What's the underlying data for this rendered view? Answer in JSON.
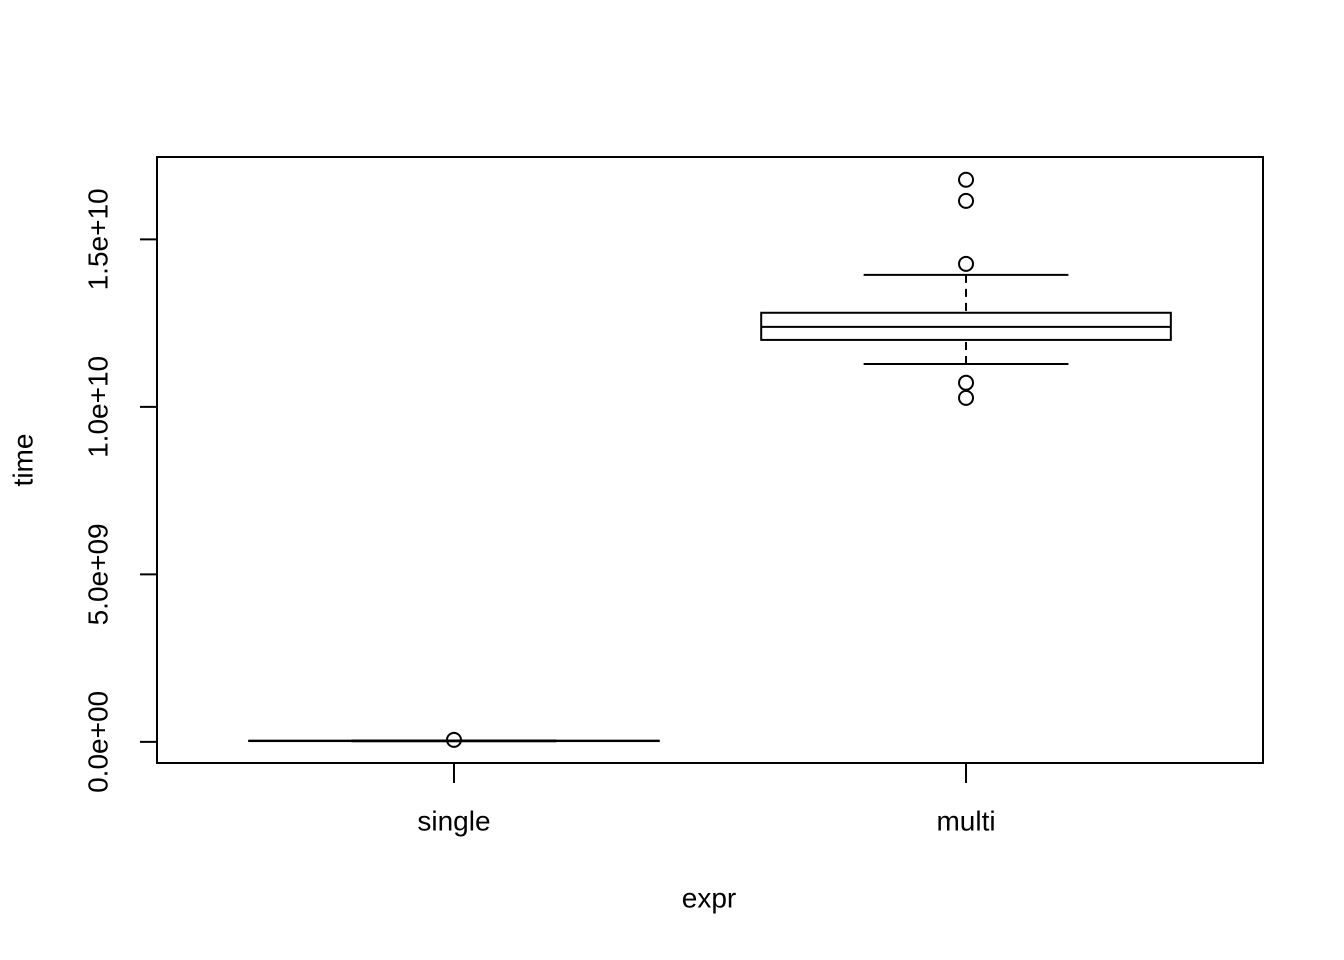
{
  "chart_data": {
    "type": "boxplot",
    "x_label": "expr",
    "y_label": "time",
    "categories": [
      "single",
      "multi"
    ],
    "boxes": [
      {
        "min": 20000000,
        "q1": 25000000,
        "median": 30000000,
        "q3": 35000000,
        "max": 40000000,
        "outliers": [
          60000000
        ]
      },
      {
        "min": 11280000000,
        "q1": 12000000000,
        "median": 12390000000,
        "q3": 12810000000,
        "max": 13940000000,
        "outliers": [
          16780000000,
          16150000000,
          14270000000,
          10720000000,
          10270000000
        ]
      }
    ],
    "color": "#000000",
    "ylim": [
      -630000000,
      17460000000
    ],
    "yticks": [
      {
        "value": 0,
        "label": "0.0e+00"
      },
      {
        "value": 5000000000,
        "label": "5.0e+09"
      },
      {
        "value": 10000000000,
        "label": "1.0e+10"
      },
      {
        "value": 15000000000,
        "label": "1.5e+10"
      }
    ]
  }
}
